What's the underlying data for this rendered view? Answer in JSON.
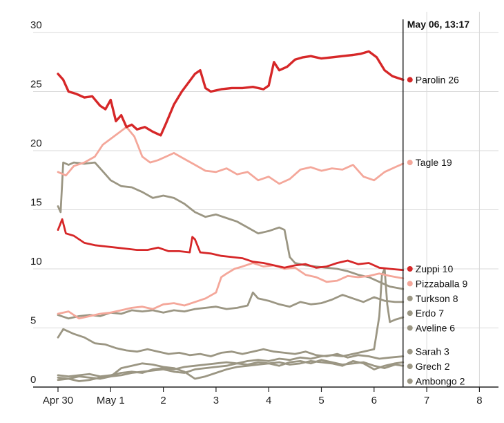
{
  "chart_data": {
    "type": "line",
    "title": "",
    "xlabel": "",
    "ylabel": "",
    "x_unit": "days since Apr 30",
    "xlim": [
      -0.05,
      8.1
    ],
    "ylim": [
      0,
      30
    ],
    "yticks": [
      0,
      5,
      10,
      15,
      20,
      25,
      30
    ],
    "xticks": [
      {
        "value": 0,
        "label": "Apr 30"
      },
      {
        "value": 1,
        "label": "May 1"
      },
      {
        "value": 2,
        "label": "2"
      },
      {
        "value": 3,
        "label": "3"
      },
      {
        "value": 4,
        "label": "4"
      },
      {
        "value": 5,
        "label": "5"
      },
      {
        "value": 6,
        "label": "6"
      },
      {
        "value": 7,
        "label": "7"
      },
      {
        "value": 8,
        "label": "8"
      }
    ],
    "grid": true,
    "current_time": {
      "value": 6.55,
      "label": "May 06, 13:17"
    },
    "colors": {
      "red": "#d62728",
      "pink": "#f4a79a",
      "gray": "#9b9683"
    },
    "series": [
      {
        "name": "Parolin",
        "end_label": "Parolin 26",
        "color": "#d62728",
        "emphasis": true,
        "x": [
          0,
          0.1,
          0.2,
          0.35,
          0.5,
          0.65,
          0.8,
          0.9,
          1.0,
          1.1,
          1.2,
          1.3,
          1.4,
          1.5,
          1.65,
          1.8,
          1.95,
          2.05,
          2.2,
          2.35,
          2.5,
          2.6,
          2.7,
          2.8,
          2.9,
          3.1,
          3.3,
          3.5,
          3.7,
          3.9,
          4.0,
          4.1,
          4.2,
          4.35,
          4.5,
          4.65,
          4.8,
          5.0,
          5.2,
          5.4,
          5.6,
          5.75,
          5.9,
          6.05,
          6.2,
          6.35,
          6.55
        ],
        "y": [
          26.5,
          26.0,
          25.0,
          24.8,
          24.5,
          24.6,
          23.8,
          23.5,
          24.3,
          22.5,
          23.0,
          22.0,
          22.2,
          21.8,
          22.0,
          21.6,
          21.3,
          22.3,
          23.9,
          25.0,
          25.9,
          26.5,
          26.8,
          25.3,
          25.0,
          25.2,
          25.3,
          25.3,
          25.4,
          25.2,
          25.5,
          27.5,
          26.8,
          27.1,
          27.7,
          27.9,
          28.0,
          27.8,
          27.9,
          28.0,
          28.1,
          28.2,
          28.4,
          27.9,
          26.8,
          26.3,
          26.0
        ]
      },
      {
        "name": "Tagle",
        "end_label": "Tagle 19",
        "color": "#f4a79a",
        "x": [
          0,
          0.15,
          0.3,
          0.5,
          0.7,
          0.85,
          1.0,
          1.15,
          1.3,
          1.45,
          1.6,
          1.75,
          1.9,
          2.05,
          2.2,
          2.4,
          2.6,
          2.8,
          3.0,
          3.2,
          3.4,
          3.6,
          3.8,
          4.0,
          4.2,
          4.4,
          4.6,
          4.8,
          5.0,
          5.2,
          5.4,
          5.6,
          5.8,
          6.0,
          6.2,
          6.4,
          6.55
        ],
        "y": [
          18.2,
          17.9,
          18.7,
          19.0,
          19.5,
          20.5,
          21.0,
          21.5,
          22.0,
          21.2,
          19.5,
          19.0,
          19.2,
          19.5,
          19.8,
          19.3,
          18.8,
          18.3,
          18.2,
          18.5,
          18.0,
          18.2,
          17.5,
          17.8,
          17.2,
          17.6,
          18.4,
          18.6,
          18.3,
          18.5,
          18.4,
          18.8,
          17.8,
          17.5,
          18.2,
          18.6,
          18.9
        ]
      },
      {
        "name": "Zuppi",
        "end_label": "Zuppi 10",
        "color": "#d62728",
        "x": [
          0,
          0.08,
          0.15,
          0.3,
          0.5,
          0.7,
          0.9,
          1.1,
          1.3,
          1.5,
          1.7,
          1.9,
          2.1,
          2.3,
          2.5,
          2.55,
          2.6,
          2.7,
          2.9,
          3.1,
          3.3,
          3.5,
          3.7,
          3.9,
          4.1,
          4.3,
          4.5,
          4.7,
          4.9,
          5.1,
          5.3,
          5.5,
          5.7,
          5.9,
          6.1,
          6.3,
          6.55
        ],
        "y": [
          13.3,
          14.2,
          13.0,
          12.8,
          12.2,
          12.0,
          11.9,
          11.8,
          11.7,
          11.6,
          11.6,
          11.8,
          11.5,
          11.5,
          11.4,
          12.7,
          12.5,
          11.4,
          11.3,
          11.1,
          11.0,
          10.9,
          10.6,
          10.5,
          10.3,
          10.1,
          10.3,
          10.4,
          10.1,
          10.2,
          10.5,
          10.7,
          10.4,
          10.5,
          10.1,
          10.0,
          9.9
        ]
      },
      {
        "name": "Pizzaballa",
        "end_label": "Pizzaballa 9",
        "color": "#f4a79a",
        "x": [
          0,
          0.2,
          0.4,
          0.6,
          0.8,
          1.0,
          1.2,
          1.4,
          1.6,
          1.8,
          2.0,
          2.2,
          2.4,
          2.6,
          2.8,
          3.0,
          3.1,
          3.2,
          3.35,
          3.5,
          3.7,
          3.9,
          4.1,
          4.3,
          4.5,
          4.7,
          4.9,
          5.1,
          5.3,
          5.5,
          5.7,
          5.9,
          6.1,
          6.3,
          6.55
        ],
        "y": [
          6.2,
          6.4,
          5.8,
          6.0,
          6.2,
          6.3,
          6.5,
          6.7,
          6.8,
          6.6,
          7.0,
          7.1,
          6.9,
          7.2,
          7.5,
          8.0,
          9.3,
          9.6,
          10.0,
          10.2,
          10.5,
          10.2,
          10.3,
          10.0,
          10.1,
          9.5,
          9.3,
          8.9,
          9.0,
          9.4,
          9.3,
          9.4,
          9.6,
          9.4,
          9.2
        ]
      },
      {
        "name": "Turkson",
        "end_label": "Turkson 8",
        "color": "#9b9683",
        "x": [
          0,
          0.05,
          0.1,
          0.2,
          0.3,
          0.5,
          0.7,
          0.9,
          1.0,
          1.2,
          1.4,
          1.6,
          1.8,
          2.0,
          2.2,
          2.4,
          2.6,
          2.8,
          3.0,
          3.2,
          3.4,
          3.6,
          3.8,
          4.0,
          4.2,
          4.3,
          4.4,
          4.5,
          4.7,
          4.9,
          5.1,
          5.3,
          5.5,
          5.7,
          5.9,
          6.1,
          6.3,
          6.55
        ],
        "y": [
          15.3,
          14.8,
          19.0,
          18.8,
          19.0,
          18.9,
          19.0,
          18.0,
          17.5,
          17.0,
          16.9,
          16.5,
          16.0,
          16.2,
          16.0,
          15.5,
          14.8,
          14.4,
          14.6,
          14.3,
          14.0,
          13.5,
          13.0,
          13.2,
          13.5,
          13.3,
          11.0,
          10.5,
          10.3,
          10.2,
          10.1,
          10.0,
          9.8,
          9.5,
          9.3,
          8.9,
          8.5,
          8.3
        ]
      },
      {
        "name": "Erdo",
        "end_label": "Erdo 7",
        "color": "#9b9683",
        "x": [
          0,
          0.2,
          0.4,
          0.6,
          0.8,
          1.0,
          1.2,
          1.4,
          1.6,
          1.8,
          2.0,
          2.2,
          2.4,
          2.6,
          2.8,
          3.0,
          3.2,
          3.4,
          3.6,
          3.7,
          3.8,
          4.0,
          4.2,
          4.4,
          4.6,
          4.8,
          5.0,
          5.2,
          5.4,
          5.6,
          5.8,
          6.0,
          6.2,
          6.4,
          6.55
        ],
        "y": [
          6.1,
          5.8,
          6.0,
          6.1,
          6.0,
          6.3,
          6.2,
          6.5,
          6.4,
          6.5,
          6.3,
          6.5,
          6.4,
          6.6,
          6.7,
          6.8,
          6.6,
          6.7,
          6.9,
          8.0,
          7.5,
          7.3,
          7.0,
          6.8,
          7.2,
          7.0,
          7.1,
          7.4,
          7.8,
          7.5,
          7.2,
          7.6,
          7.3,
          7.2,
          7.2
        ]
      },
      {
        "name": "Aveline",
        "end_label": "Aveline 6",
        "color": "#9b9683",
        "x": [
          0,
          0.2,
          0.4,
          0.6,
          0.8,
          1.0,
          1.2,
          1.4,
          1.6,
          1.8,
          2.0,
          2.2,
          2.4,
          2.6,
          2.8,
          3.0,
          3.2,
          3.4,
          3.6,
          3.8,
          4.0,
          4.2,
          4.4,
          4.6,
          4.8,
          5.0,
          5.2,
          5.4,
          5.6,
          5.8,
          6.0,
          6.1,
          6.15,
          6.2,
          6.25,
          6.3,
          6.4,
          6.55
        ],
        "y": [
          1.0,
          0.9,
          1.0,
          1.1,
          0.9,
          1.0,
          1.2,
          1.3,
          1.2,
          1.5,
          1.6,
          1.5,
          1.7,
          1.8,
          1.9,
          2.0,
          2.1,
          2.0,
          2.2,
          2.3,
          2.2,
          2.4,
          2.3,
          2.5,
          2.4,
          2.6,
          2.7,
          2.6,
          2.8,
          3.0,
          3.2,
          6.0,
          9.5,
          10.0,
          7.0,
          5.5,
          5.7,
          5.9
        ]
      },
      {
        "name": "Sarah",
        "end_label": "Sarah 3",
        "color": "#9b9683",
        "x": [
          0,
          0.1,
          0.3,
          0.5,
          0.7,
          0.9,
          1.1,
          1.3,
          1.5,
          1.7,
          1.9,
          2.1,
          2.3,
          2.5,
          2.7,
          2.9,
          3.1,
          3.3,
          3.5,
          3.7,
          3.9,
          4.1,
          4.3,
          4.5,
          4.7,
          4.9,
          5.1,
          5.3,
          5.5,
          5.7,
          5.9,
          6.1,
          6.3,
          6.55
        ],
        "y": [
          4.2,
          4.9,
          4.5,
          4.2,
          3.7,
          3.6,
          3.3,
          3.1,
          3.0,
          3.2,
          3.0,
          2.8,
          2.9,
          2.7,
          2.8,
          2.6,
          2.9,
          3.0,
          2.8,
          3.0,
          3.2,
          3.0,
          2.9,
          2.8,
          3.0,
          2.7,
          2.6,
          2.8,
          2.5,
          2.7,
          2.6,
          2.4,
          2.5,
          2.6
        ]
      },
      {
        "name": "Grech",
        "end_label": "Grech 2",
        "color": "#9b9683",
        "x": [
          0,
          0.2,
          0.4,
          0.6,
          0.8,
          1.0,
          1.2,
          1.4,
          1.6,
          1.8,
          2.0,
          2.2,
          2.4,
          2.6,
          2.8,
          3.0,
          3.2,
          3.4,
          3.6,
          3.8,
          4.0,
          4.2,
          4.4,
          4.6,
          4.8,
          5.0,
          5.2,
          5.4,
          5.6,
          5.8,
          6.0,
          6.2,
          6.4,
          6.55
        ],
        "y": [
          0.8,
          0.7,
          0.9,
          0.8,
          0.7,
          0.9,
          1.6,
          1.8,
          2.0,
          1.9,
          1.7,
          1.6,
          1.3,
          0.7,
          0.9,
          1.2,
          1.5,
          1.7,
          1.8,
          1.9,
          2.0,
          2.1,
          1.9,
          2.0,
          2.2,
          2.1,
          2.0,
          1.8,
          2.2,
          2.0,
          1.5,
          1.8,
          2.0,
          2.1
        ]
      },
      {
        "name": "Ambongo",
        "end_label": "Ambongo 2",
        "color": "#9b9683",
        "x": [
          0,
          0.2,
          0.4,
          0.6,
          0.8,
          1.0,
          1.2,
          1.4,
          1.6,
          1.8,
          2.0,
          2.2,
          2.4,
          2.6,
          2.8,
          3.0,
          3.2,
          3.4,
          3.6,
          3.8,
          4.0,
          4.2,
          4.4,
          4.6,
          4.8,
          5.0,
          5.2,
          5.4,
          5.6,
          5.8,
          6.0,
          6.2,
          6.4,
          6.55
        ],
        "y": [
          0.6,
          0.7,
          0.5,
          0.6,
          0.8,
          0.9,
          1.0,
          1.2,
          1.3,
          1.4,
          1.5,
          1.3,
          1.2,
          1.5,
          1.6,
          1.7,
          1.8,
          2.0,
          1.9,
          2.1,
          2.0,
          1.8,
          2.1,
          2.2,
          2.0,
          2.3,
          2.1,
          1.9,
          2.0,
          2.1,
          1.8,
          1.6,
          1.9,
          1.8
        ]
      }
    ],
    "end_label_positions": [
      26,
      19,
      10,
      8.75,
      7.5,
      6.25,
      5.0,
      3.0,
      1.75,
      0.5
    ]
  }
}
